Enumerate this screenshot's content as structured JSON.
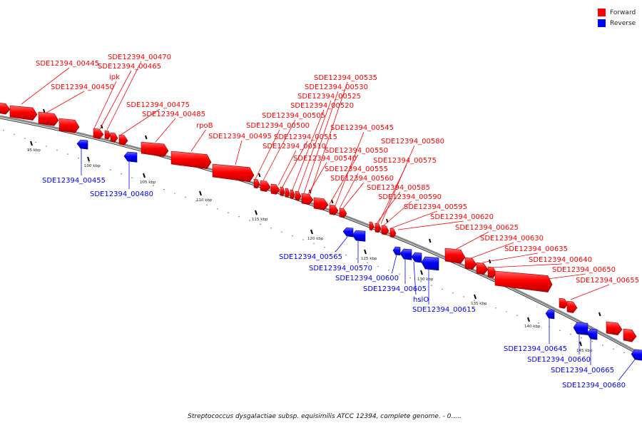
{
  "legend": {
    "forward_label": "Forward",
    "reverse_label": "Reverse",
    "forward_color": "#ff0000",
    "reverse_color": "#0000ff"
  },
  "colors": {
    "backbone": "#888888",
    "leader": "#000000"
  },
  "caption": "Streptococcus dysgalactiae subsp. equisimilis ATCC 12394, complete genome. - 0.....",
  "ticks": [
    "95 kbp",
    "100 kbp",
    "105 kbp",
    "110 kbp",
    "115 kbp",
    "120 kbp",
    "125 kbp",
    "130 kbp",
    "135 kbp",
    "140 kbp",
    "145 kbp"
  ],
  "forward_genes": [
    "SDE12394_00445",
    "SDE12394_00450",
    "SDE12394_00470",
    "SDE12394_00465",
    "ipk",
    "SDE12394_00475",
    "SDE12394_00485",
    "rpoB",
    "SDE12394_00495",
    "SDE12394_00500",
    "SDE12394_00505",
    "SDE12394_00510",
    "SDE12394_00515",
    "SDE12394_00520",
    "SDE12394_00525",
    "SDE12394_00530",
    "SDE12394_00535",
    "SDE12394_00540",
    "SDE12394_00545",
    "SDE12394_00550",
    "SDE12394_00555",
    "SDE12394_00560",
    "SDE12394_00575",
    "SDE12394_00580",
    "SDE12394_00585",
    "SDE12394_00590",
    "SDE12394_00595",
    "SDE12394_00620",
    "SDE12394_00625",
    "SDE12394_00630",
    "SDE12394_00635",
    "SDE12394_00640",
    "SDE12394_00650",
    "SDE12394_00655"
  ],
  "reverse_genes": [
    "SDE12394_00455",
    "SDE12394_00480",
    "SDE12394_00565",
    "SDE12394_00570",
    "SDE12394_00600",
    "SDE12394_00605",
    "hslO",
    "SDE12394_00615",
    "SDE12394_00645",
    "SDE12394_00660",
    "SDE12394_00665",
    "SDE12394_00680"
  ]
}
